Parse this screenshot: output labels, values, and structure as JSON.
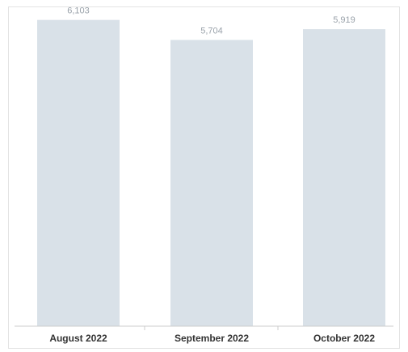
{
  "chart_data": {
    "type": "bar",
    "title": "",
    "categories": [
      "August 2022",
      "September 2022",
      "October 2022"
    ],
    "values": [
      6103,
      5704,
      5919
    ],
    "value_labels": [
      "6,103",
      "5,704",
      "5,919"
    ],
    "xlabel": "",
    "ylabel": "",
    "ylim": [
      0,
      6500
    ],
    "grid": false,
    "legend": "none",
    "colors": {
      "bar": "#d9e1e8",
      "value_label": "#9aa2aa",
      "category_label": "#333333"
    }
  }
}
